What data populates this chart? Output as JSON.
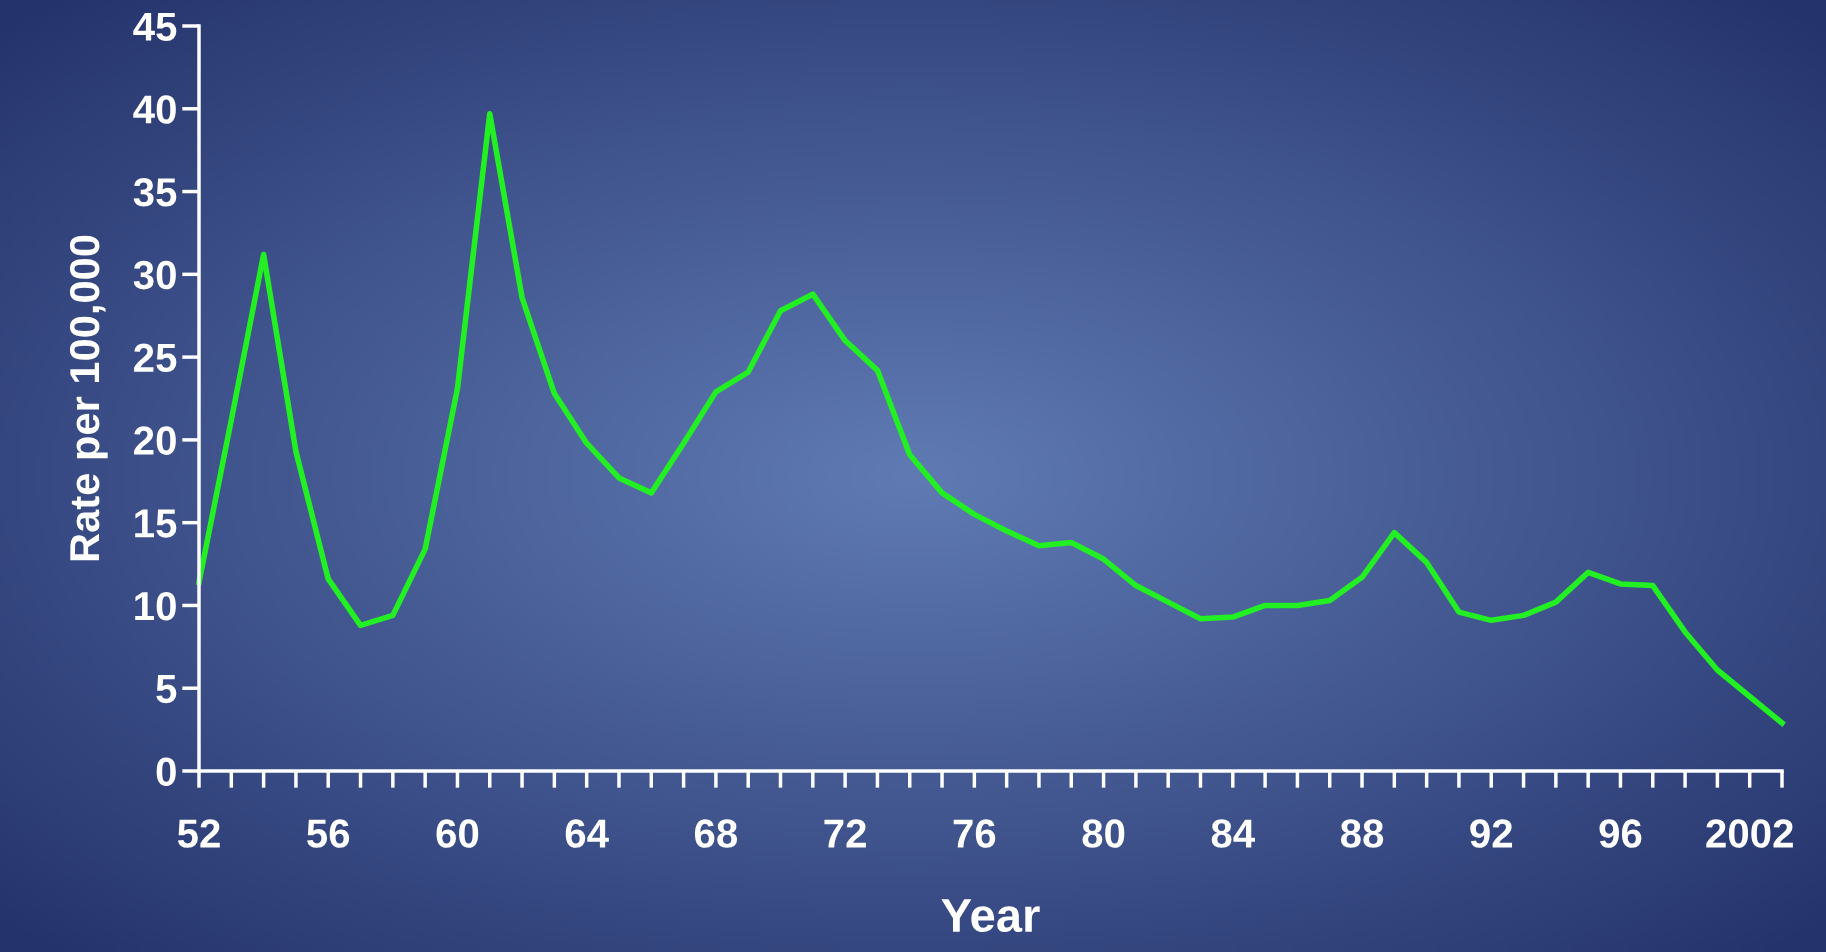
{
  "chart_data": {
    "type": "line",
    "xlabel": "Year",
    "ylabel": "Rate per 100,000",
    "categories": [
      "52",
      null,
      null,
      null,
      "56",
      null,
      null,
      null,
      "60",
      null,
      null,
      null,
      "64",
      null,
      null,
      null,
      "68",
      null,
      null,
      null,
      "72",
      null,
      null,
      null,
      "76",
      null,
      null,
      null,
      "80",
      null,
      null,
      null,
      "84",
      null,
      null,
      null,
      "88",
      null,
      null,
      null,
      "92",
      null,
      null,
      null,
      "96",
      null,
      null,
      null,
      "2002",
      null
    ],
    "series": [
      {
        "color": "#22f022",
        "values": [
          11.4,
          21.2,
          31.2,
          19.3,
          11.6,
          8.8,
          9.4,
          13.4,
          23.1,
          39.7,
          28.6,
          22.8,
          19.8,
          17.7,
          16.8,
          19.8,
          22.9,
          24.1,
          27.8,
          28.8,
          26.0,
          24.2,
          19.1,
          16.8,
          15.5,
          14.5,
          13.6,
          13.8,
          12.8,
          11.2,
          10.2,
          9.2,
          9.3,
          10.0,
          10.0,
          10.3,
          11.7,
          14.4,
          12.6,
          9.6,
          9.1,
          9.4,
          10.2,
          12.0,
          11.3,
          11.2,
          8.4,
          6.1,
          4.5,
          2.9
        ]
      }
    ],
    "ylim": [
      0,
      45
    ],
    "yticks": [
      0,
      5,
      10,
      15,
      20,
      25,
      30,
      35,
      40,
      45
    ],
    "grid": false,
    "legend": false,
    "marker": "none",
    "line_style": "solid"
  }
}
